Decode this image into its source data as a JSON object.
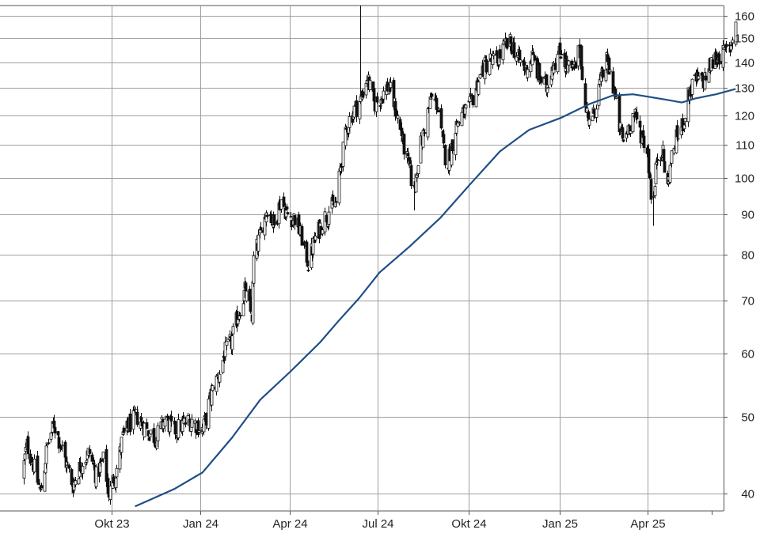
{
  "chart_data": {
    "type": "candlestick",
    "title": "",
    "xlabel": "",
    "ylabel": "",
    "y_scale": "log",
    "ylim": [
      38,
      165
    ],
    "y_ticks": [
      40,
      50,
      60,
      70,
      80,
      90,
      100,
      110,
      120,
      130,
      140,
      150,
      160
    ],
    "x_ticks": [
      "Okt 23",
      "Jan 24",
      "Apr 24",
      "Jul 24",
      "Okt 24",
      "Jan 25",
      "Apr 25"
    ],
    "grid": true,
    "colors": {
      "up": "#ffffff",
      "down": "#111111",
      "moving_average": "#1f4e86",
      "grid": "#9e9e9e"
    },
    "price_anchors": [
      [
        "2023-07-01",
        42
      ],
      [
        "2023-07-06",
        46
      ],
      [
        "2023-07-12",
        44
      ],
      [
        "2023-07-20",
        40
      ],
      [
        "2023-07-27",
        46
      ],
      [
        "2023-08-03",
        49
      ],
      [
        "2023-08-12",
        45
      ],
      [
        "2023-08-22",
        41
      ],
      [
        "2023-09-01",
        44
      ],
      [
        "2023-09-08",
        45
      ],
      [
        "2023-09-15",
        42
      ],
      [
        "2023-09-22",
        44
      ],
      [
        "2023-09-28",
        40
      ],
      [
        "2023-10-06",
        43
      ],
      [
        "2023-10-12",
        47
      ],
      [
        "2023-10-20",
        49
      ],
      [
        "2023-10-27",
        50
      ],
      [
        "2023-11-06",
        48
      ],
      [
        "2023-11-15",
        47
      ],
      [
        "2023-11-24",
        49.5
      ],
      [
        "2023-12-04",
        48
      ],
      [
        "2023-12-14",
        49
      ],
      [
        "2023-12-22",
        49.5
      ],
      [
        "2024-01-02",
        48
      ],
      [
        "2024-01-10",
        53
      ],
      [
        "2024-01-17",
        56
      ],
      [
        "2024-01-24",
        60
      ],
      [
        "2024-01-31",
        62
      ],
      [
        "2024-02-08",
        68
      ],
      [
        "2024-02-14",
        72
      ],
      [
        "2024-02-21",
        67
      ],
      [
        "2024-02-23",
        79
      ],
      [
        "2024-03-01",
        85
      ],
      [
        "2024-03-08",
        92
      ],
      [
        "2024-03-15",
        87
      ],
      [
        "2024-03-22",
        94
      ],
      [
        "2024-03-28",
        90
      ],
      [
        "2024-04-05",
        89
      ],
      [
        "2024-04-12",
        84
      ],
      [
        "2024-04-19",
        78
      ],
      [
        "2024-04-26",
        84
      ],
      [
        "2024-05-03",
        88
      ],
      [
        "2024-05-10",
        91
      ],
      [
        "2024-05-17",
        93
      ],
      [
        "2024-05-21",
        102
      ],
      [
        "2024-05-24",
        108
      ],
      [
        "2024-05-30",
        118
      ],
      [
        "2024-06-05",
        122
      ],
      [
        "2024-06-12",
        126
      ],
      [
        "2024-06-18",
        134
      ],
      [
        "2024-06-25",
        124
      ],
      [
        "2024-07-01",
        126
      ],
      [
        "2024-07-05",
        128
      ],
      [
        "2024-07-10",
        131
      ],
      [
        "2024-07-17",
        122
      ],
      [
        "2024-07-24",
        112
      ],
      [
        "2024-07-30",
        104
      ],
      [
        "2024-08-05",
        96
      ],
      [
        "2024-08-09",
        106
      ],
      [
        "2024-08-16",
        116
      ],
      [
        "2024-08-22",
        126
      ],
      [
        "2024-08-29",
        124
      ],
      [
        "2024-09-04",
        108
      ],
      [
        "2024-09-09",
        105
      ],
      [
        "2024-09-16",
        116
      ],
      [
        "2024-09-23",
        120
      ],
      [
        "2024-09-30",
        122
      ],
      [
        "2024-10-07",
        130
      ],
      [
        "2024-10-14",
        137
      ],
      [
        "2024-10-21",
        141
      ],
      [
        "2024-10-28",
        140
      ],
      [
        "2024-11-05",
        146
      ],
      [
        "2024-11-12",
        148
      ],
      [
        "2024-11-20",
        141
      ],
      [
        "2024-11-27",
        137
      ],
      [
        "2024-12-04",
        142
      ],
      [
        "2024-12-11",
        134
      ],
      [
        "2024-12-18",
        130
      ],
      [
        "2024-12-24",
        139
      ],
      [
        "2025-01-03",
        145
      ],
      [
        "2025-01-08",
        138
      ],
      [
        "2025-01-15",
        136
      ],
      [
        "2025-01-22",
        146
      ],
      [
        "2025-01-27",
        122
      ],
      [
        "2025-02-03",
        118
      ],
      [
        "2025-02-10",
        130
      ],
      [
        "2025-02-18",
        140
      ],
      [
        "2025-02-26",
        128
      ],
      [
        "2025-03-03",
        116
      ],
      [
        "2025-03-07",
        111
      ],
      [
        "2025-03-12",
        116
      ],
      [
        "2025-03-17",
        120
      ],
      [
        "2025-03-21",
        118
      ],
      [
        "2025-03-27",
        112
      ],
      [
        "2025-04-01",
        108
      ],
      [
        "2025-04-04",
        96
      ],
      [
        "2025-04-07",
        94
      ],
      [
        "2025-04-10",
        106
      ],
      [
        "2025-04-15",
        109
      ],
      [
        "2025-04-21",
        97
      ],
      [
        "2025-04-25",
        106
      ],
      [
        "2025-05-01",
        113
      ],
      [
        "2025-05-06",
        116
      ],
      [
        "2025-05-13",
        128
      ],
      [
        "2025-05-20",
        133
      ],
      [
        "2025-05-27",
        132
      ],
      [
        "2025-06-03",
        138
      ],
      [
        "2025-06-10",
        142
      ],
      [
        "2025-06-17",
        143
      ],
      [
        "2025-06-24",
        146
      ],
      [
        "2025-06-30",
        157
      ]
    ],
    "spikes": [
      {
        "date": "2024-06-11",
        "high": 165
      },
      {
        "date": "2024-08-05",
        "low": 91
      },
      {
        "date": "2025-04-07",
        "low": 87
      }
    ],
    "moving_average": {
      "period_days": 200,
      "points": [
        [
          "2023-10-25",
          38.5
        ],
        [
          "2023-12-04",
          40.5
        ],
        [
          "2024-01-02",
          42.5
        ],
        [
          "2024-02-01",
          47
        ],
        [
          "2024-03-01",
          52.5
        ],
        [
          "2024-04-01",
          57
        ],
        [
          "2024-05-01",
          62
        ],
        [
          "2024-05-20",
          66
        ],
        [
          "2024-06-10",
          70.5
        ],
        [
          "2024-07-01",
          76
        ],
        [
          "2024-08-01",
          82
        ],
        [
          "2024-09-01",
          89
        ],
        [
          "2024-10-01",
          98
        ],
        [
          "2024-11-01",
          108
        ],
        [
          "2024-12-01",
          115
        ],
        [
          "2025-01-02",
          119
        ],
        [
          "2025-02-01",
          124
        ],
        [
          "2025-02-24",
          127
        ],
        [
          "2025-03-17",
          127.5
        ],
        [
          "2025-04-03",
          126.5
        ],
        [
          "2025-04-20",
          125.5
        ],
        [
          "2025-05-06",
          124.5
        ],
        [
          "2025-05-20",
          126
        ],
        [
          "2025-06-10",
          127.5
        ],
        [
          "2025-06-30",
          129.5
        ]
      ]
    }
  }
}
